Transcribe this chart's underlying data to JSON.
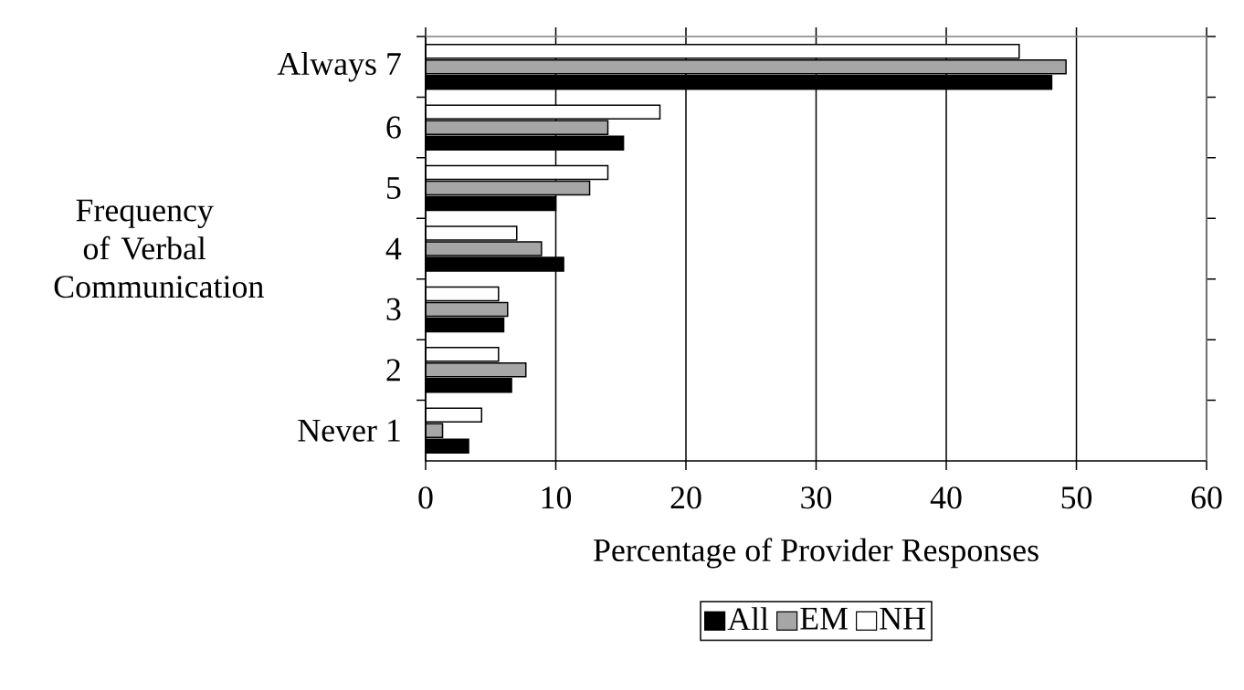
{
  "chart_data": {
    "type": "bar",
    "orientation": "horizontal",
    "categories": [
      "Always 7",
      "6",
      "5",
      "4",
      "3",
      "2",
      "Never 1"
    ],
    "series": [
      {
        "name": "All",
        "color": "#000000",
        "values": [
          48.1,
          15.2,
          10.0,
          10.6,
          6.0,
          6.6,
          3.3
        ]
      },
      {
        "name": "EM",
        "color": "#a6a6a6",
        "values": [
          49.2,
          14.0,
          12.6,
          8.9,
          6.3,
          7.7,
          1.3
        ]
      },
      {
        "name": "NH",
        "color": "#ffffff",
        "values": [
          45.6,
          18.0,
          14.0,
          7.0,
          5.6,
          5.6,
          4.3
        ]
      }
    ],
    "xlim": [
      0,
      60
    ],
    "xticks": [
      0,
      10,
      20,
      30,
      40,
      50,
      60
    ],
    "xlabel": "Percentage of Provider Responses",
    "ylabel": "Frequency of Verbal Communication",
    "grid": "x",
    "legend": "bottom"
  }
}
